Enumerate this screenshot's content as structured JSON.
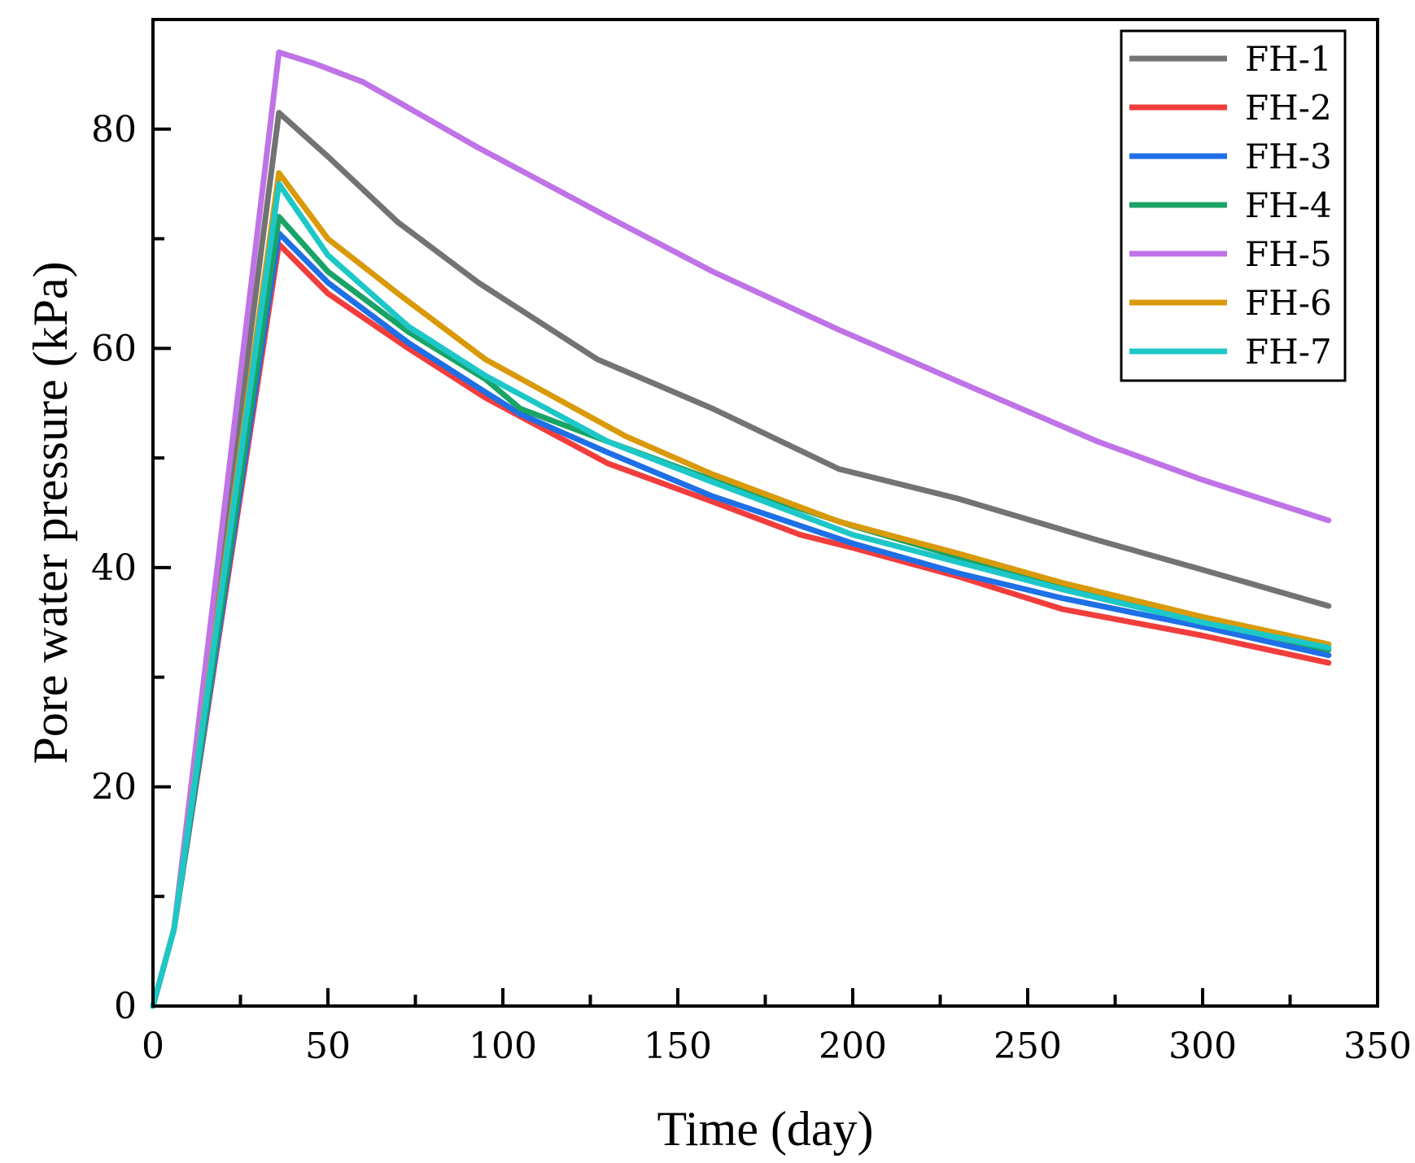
{
  "chart_data": {
    "type": "line",
    "title": "",
    "xlabel": "Time (day)",
    "ylabel": "Pore water pressure (kPa)",
    "xlim": [
      0,
      350
    ],
    "ylim": [
      0,
      90
    ],
    "xticks": [
      0,
      50,
      100,
      150,
      200,
      250,
      300,
      350
    ],
    "yticks": [
      0,
      20,
      40,
      60,
      80
    ],
    "grid": false,
    "legend_position": "top-right",
    "series": [
      {
        "name": "FH-1",
        "color": "#737373",
        "x": [
          0,
          6,
          36,
          50,
          70,
          93,
          127,
          160,
          196,
          230,
          270,
          300,
          336
        ],
        "y": [
          0,
          7,
          81.5,
          77.5,
          71.5,
          66,
          59,
          54.5,
          49,
          46.3,
          42.5,
          39.8,
          36.5
        ]
      },
      {
        "name": "FH-2",
        "color": "#f23d3d",
        "x": [
          0,
          6,
          36,
          50,
          73,
          95,
          130,
          160,
          185,
          200,
          230,
          260,
          300,
          336
        ],
        "y": [
          0,
          7,
          69.5,
          65,
          60,
          55.5,
          49.5,
          46,
          43,
          41.8,
          39.2,
          36.2,
          33.8,
          31.3
        ]
      },
      {
        "name": "FH-3",
        "color": "#1f6fe6",
        "x": [
          0,
          6,
          36,
          50,
          73,
          95,
          105,
          130,
          160,
          200,
          230,
          260,
          300,
          336
        ],
        "y": [
          0,
          7,
          70.5,
          66,
          60.5,
          56,
          54,
          50.5,
          46.5,
          42.2,
          39.5,
          37.2,
          34.6,
          32
        ]
      },
      {
        "name": "FH-4",
        "color": "#1aa366",
        "x": [
          0,
          6,
          36,
          50,
          73,
          95,
          105,
          130,
          160,
          200,
          230,
          260,
          300,
          336
        ],
        "y": [
          0,
          7,
          72,
          67,
          61.5,
          57.2,
          54.5,
          51.5,
          48,
          43.8,
          41,
          38.3,
          35.2,
          32.5
        ]
      },
      {
        "name": "FH-5",
        "color": "#bf73e6",
        "x": [
          0,
          6,
          36,
          46,
          60,
          70,
          93,
          130,
          160,
          196,
          230,
          270,
          300,
          336
        ],
        "y": [
          0,
          7,
          87,
          86,
          84.3,
          82.5,
          78.3,
          72,
          67,
          61.7,
          57,
          51.5,
          48,
          44.3
        ]
      },
      {
        "name": "FH-6",
        "color": "#d99a0a",
        "x": [
          0,
          6,
          36,
          50,
          70,
          95,
          135,
          160,
          196,
          230,
          260,
          300,
          336
        ],
        "y": [
          0,
          7,
          76,
          70,
          65,
          59,
          52,
          48.5,
          44.2,
          41.3,
          38.6,
          35.5,
          33
        ]
      },
      {
        "name": "FH-7",
        "color": "#1ec7c7",
        "x": [
          0,
          6,
          36,
          50,
          73,
          95,
          130,
          160,
          200,
          230,
          260,
          300,
          336
        ],
        "y": [
          0,
          7,
          75,
          68.5,
          62,
          57.5,
          51.5,
          47.8,
          43,
          40.5,
          38,
          35,
          32.7
        ]
      }
    ]
  }
}
